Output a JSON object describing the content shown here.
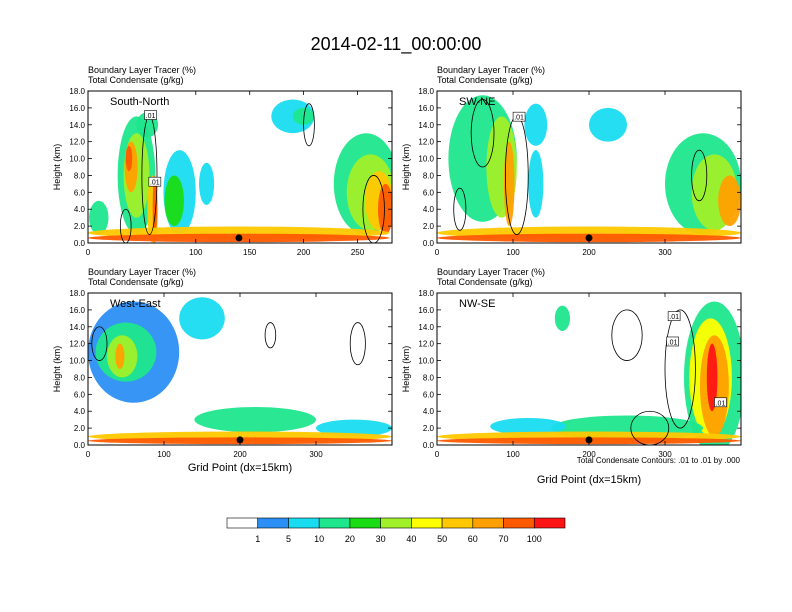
{
  "figure": {
    "title": "2014-02-11_00:00:00",
    "footnote": "Total Condensate Contours: .01 to .01 by .000",
    "colorbar": {
      "colors": [
        "#ffffff",
        "#2c8ff5",
        "#19dcf0",
        "#1ee68c",
        "#19dc14",
        "#a0f02a",
        "#ffff00",
        "#ffc800",
        "#ffa000",
        "#ff5a00",
        "#ff1414"
      ],
      "tick_labels": [
        "1",
        "5",
        "10",
        "20",
        "30",
        "40",
        "50",
        "60",
        "70",
        "100"
      ]
    }
  },
  "chart_data": [
    {
      "type": "heatmap",
      "panel": "South-North",
      "title_line1": "Boundary Layer Tracer   (%)",
      "title_line2": "Total Condensate   (g/kg)",
      "ylabel": "Height (km)",
      "xlabel": "",
      "xlim": [
        0,
        282
      ],
      "ylim": [
        0,
        18
      ],
      "xticks": [
        0,
        100,
        150,
        200,
        250
      ],
      "xtick_labels": [
        "0",
        "100",
        "150",
        "200",
        "250"
      ],
      "yticks": [
        0,
        2,
        4,
        6,
        8,
        10,
        12,
        14,
        16,
        18
      ],
      "ytick_labels": [
        "0.0",
        "2.0",
        "4.0",
        "6.0",
        "8.0",
        "10.0",
        "12.0",
        "14.0",
        "16.0",
        "18.0"
      ],
      "marker_x": 140,
      "contour_labels": [
        {
          "text": ".01",
          "x": 58,
          "y": 15.1
        },
        {
          "text": ".01",
          "x": 62,
          "y": 7.2
        }
      ],
      "blobs": [
        {
          "x": 45,
          "y": 8,
          "w": 35,
          "h": 14,
          "lvl": 3
        },
        {
          "x": 45,
          "y": 8,
          "w": 24,
          "h": 10,
          "lvl": 5
        },
        {
          "x": 40,
          "y": 9,
          "w": 12,
          "h": 6,
          "lvl": 8
        },
        {
          "x": 38,
          "y": 10,
          "w": 6,
          "h": 3,
          "lvl": 9
        },
        {
          "x": 55,
          "y": 14,
          "w": 20,
          "h": 3,
          "lvl": 3
        },
        {
          "x": 60,
          "y": 4,
          "w": 10,
          "h": 8,
          "lvl": 7
        },
        {
          "x": 62,
          "y": 4,
          "w": 4,
          "h": 8,
          "lvl": 9
        },
        {
          "x": 85,
          "y": 6,
          "w": 30,
          "h": 10,
          "lvl": 2
        },
        {
          "x": 80,
          "y": 5,
          "w": 18,
          "h": 6,
          "lvl": 4
        },
        {
          "x": 110,
          "y": 7,
          "w": 14,
          "h": 5,
          "lvl": 2
        },
        {
          "x": 190,
          "y": 15,
          "w": 40,
          "h": 4,
          "lvl": 2
        },
        {
          "x": 200,
          "y": 15,
          "w": 20,
          "h": 2,
          "lvl": 3
        },
        {
          "x": 258,
          "y": 7,
          "w": 60,
          "h": 12,
          "lvl": 3
        },
        {
          "x": 262,
          "y": 6,
          "w": 44,
          "h": 9,
          "lvl": 5
        },
        {
          "x": 270,
          "y": 5,
          "w": 26,
          "h": 7,
          "lvl": 7
        },
        {
          "x": 276,
          "y": 4,
          "w": 14,
          "h": 6,
          "lvl": 9
        },
        {
          "x": 10,
          "y": 3,
          "w": 18,
          "h": 4,
          "lvl": 3
        },
        {
          "x": 140,
          "y": 1.2,
          "w": 280,
          "h": 1.5,
          "lvl": 7
        },
        {
          "x": 140,
          "y": 0.6,
          "w": 280,
          "h": 1.0,
          "lvl": 9
        }
      ],
      "contours": [
        {
          "x": 205,
          "y": 14,
          "w": 10,
          "h": 5
        },
        {
          "x": 57,
          "y": 8,
          "w": 14,
          "h": 14
        },
        {
          "x": 265,
          "y": 4,
          "w": 20,
          "h": 8
        },
        {
          "x": 35,
          "y": 2,
          "w": 10,
          "h": 4
        }
      ]
    },
    {
      "type": "heatmap",
      "panel": "SW-NE",
      "title_line1": "Boundary Layer Tracer   (%)",
      "title_line2": "Total Condensate   (g/kg)",
      "ylabel": "Height (km)",
      "xlabel": "",
      "xlim": [
        0,
        400
      ],
      "ylim": [
        0,
        18
      ],
      "xticks": [
        0,
        100,
        200,
        300
      ],
      "xtick_labels": [
        "0",
        "100",
        "200",
        "300"
      ],
      "yticks": [
        0,
        2,
        4,
        6,
        8,
        10,
        12,
        14,
        16,
        18
      ],
      "ytick_labels": [
        "0.0",
        "2.0",
        "4.0",
        "6.0",
        "8.0",
        "10.0",
        "12.0",
        "14.0",
        "16.0",
        "18.0"
      ],
      "marker_x": 200,
      "contour_labels": [
        {
          "text": ".01",
          "x": 108,
          "y": 14.9
        }
      ],
      "blobs": [
        {
          "x": 60,
          "y": 10,
          "w": 90,
          "h": 15,
          "lvl": 3
        },
        {
          "x": 85,
          "y": 9,
          "w": 40,
          "h": 12,
          "lvl": 5
        },
        {
          "x": 95,
          "y": 7,
          "w": 14,
          "h": 10,
          "lvl": 8
        },
        {
          "x": 130,
          "y": 7,
          "w": 20,
          "h": 8,
          "lvl": 2
        },
        {
          "x": 130,
          "y": 14,
          "w": 30,
          "h": 5,
          "lvl": 2
        },
        {
          "x": 225,
          "y": 14,
          "w": 50,
          "h": 4,
          "lvl": 2
        },
        {
          "x": 350,
          "y": 7,
          "w": 100,
          "h": 12,
          "lvl": 3
        },
        {
          "x": 365,
          "y": 6,
          "w": 60,
          "h": 9,
          "lvl": 5
        },
        {
          "x": 385,
          "y": 5,
          "w": 30,
          "h": 6,
          "lvl": 8
        },
        {
          "x": 200,
          "y": 1.2,
          "w": 400,
          "h": 1.5,
          "lvl": 7
        },
        {
          "x": 200,
          "y": 0.6,
          "w": 400,
          "h": 1.0,
          "lvl": 9
        }
      ],
      "contours": [
        {
          "x": 60,
          "y": 13,
          "w": 30,
          "h": 8
        },
        {
          "x": 105,
          "y": 8,
          "w": 30,
          "h": 14
        },
        {
          "x": 345,
          "y": 8,
          "w": 20,
          "h": 6
        },
        {
          "x": 30,
          "y": 4,
          "w": 16,
          "h": 5
        }
      ]
    },
    {
      "type": "heatmap",
      "panel": "West-East",
      "title_line1": "Boundary Layer Tracer   (%)",
      "title_line2": "Total Condensate   (g/kg)",
      "ylabel": "Height (km)",
      "xlabel": "Grid Point (dx=15km)",
      "xlim": [
        0,
        400
      ],
      "ylim": [
        0,
        18
      ],
      "xticks": [
        0,
        100,
        200,
        300
      ],
      "xtick_labels": [
        "0",
        "100",
        "200",
        "300"
      ],
      "yticks": [
        0,
        2,
        4,
        6,
        8,
        10,
        12,
        14,
        16,
        18
      ],
      "ytick_labels": [
        "0.0",
        "2.0",
        "4.0",
        "6.0",
        "8.0",
        "10.0",
        "12.0",
        "14.0",
        "16.0",
        "18.0"
      ],
      "marker_x": 200,
      "contour_labels": [],
      "blobs": [
        {
          "x": 60,
          "y": 11,
          "w": 120,
          "h": 12,
          "lvl": 1
        },
        {
          "x": 50,
          "y": 11,
          "w": 80,
          "h": 7,
          "lvl": 3
        },
        {
          "x": 45,
          "y": 10.5,
          "w": 40,
          "h": 5,
          "lvl": 5
        },
        {
          "x": 42,
          "y": 10.5,
          "w": 12,
          "h": 3,
          "lvl": 8
        },
        {
          "x": 150,
          "y": 15,
          "w": 60,
          "h": 5,
          "lvl": 2
        },
        {
          "x": 220,
          "y": 3,
          "w": 160,
          "h": 3,
          "lvl": 3
        },
        {
          "x": 350,
          "y": 2,
          "w": 100,
          "h": 2,
          "lvl": 2
        },
        {
          "x": 200,
          "y": 1.0,
          "w": 400,
          "h": 1.2,
          "lvl": 7
        },
        {
          "x": 200,
          "y": 0.5,
          "w": 400,
          "h": 0.8,
          "lvl": 9
        }
      ],
      "contours": [
        {
          "x": 355,
          "y": 12,
          "w": 20,
          "h": 5
        },
        {
          "x": 240,
          "y": 13,
          "w": 14,
          "h": 3
        },
        {
          "x": 15,
          "y": 12,
          "w": 20,
          "h": 4
        }
      ]
    },
    {
      "type": "heatmap",
      "panel": "NW-SE",
      "title_line1": "Boundary Layer Tracer   (%)",
      "title_line2": "Total Condensate   (g/kg)",
      "ylabel": "Height (km)",
      "xlabel": "Grid Point (dx=15km)",
      "xlim": [
        0,
        400
      ],
      "ylim": [
        0,
        18
      ],
      "xticks": [
        0,
        100,
        200,
        300
      ],
      "xtick_labels": [
        "0",
        "100",
        "200",
        "300"
      ],
      "yticks": [
        0,
        2,
        4,
        6,
        8,
        10,
        12,
        14,
        16,
        18
      ],
      "ytick_labels": [
        "0.0",
        "2.0",
        "4.0",
        "6.0",
        "8.0",
        "10.0",
        "12.0",
        "14.0",
        "16.0",
        "18.0"
      ],
      "marker_x": 200,
      "contour_labels": [
        {
          "text": ".01",
          "x": 312,
          "y": 15.2
        },
        {
          "text": ".01",
          "x": 310,
          "y": 12.2
        },
        {
          "text": ".01",
          "x": 373,
          "y": 5.0
        }
      ],
      "blobs": [
        {
          "x": 365,
          "y": 8,
          "w": 80,
          "h": 18,
          "lvl": 3
        },
        {
          "x": 360,
          "y": 8,
          "w": 56,
          "h": 14,
          "lvl": 6
        },
        {
          "x": 365,
          "y": 7,
          "w": 38,
          "h": 12,
          "lvl": 8
        },
        {
          "x": 362,
          "y": 8,
          "w": 14,
          "h": 8,
          "lvl": 10
        },
        {
          "x": 165,
          "y": 15,
          "w": 20,
          "h": 3,
          "lvl": 3
        },
        {
          "x": 250,
          "y": 2,
          "w": 200,
          "h": 3,
          "lvl": 3
        },
        {
          "x": 120,
          "y": 2.2,
          "w": 100,
          "h": 2,
          "lvl": 2
        },
        {
          "x": 200,
          "y": 1.0,
          "w": 400,
          "h": 1.2,
          "lvl": 7
        },
        {
          "x": 200,
          "y": 0.5,
          "w": 400,
          "h": 0.8,
          "lvl": 9
        }
      ],
      "contours": [
        {
          "x": 250,
          "y": 13,
          "w": 40,
          "h": 6
        },
        {
          "x": 320,
          "y": 9,
          "w": 40,
          "h": 14
        },
        {
          "x": 280,
          "y": 2,
          "w": 50,
          "h": 4
        }
      ]
    }
  ]
}
